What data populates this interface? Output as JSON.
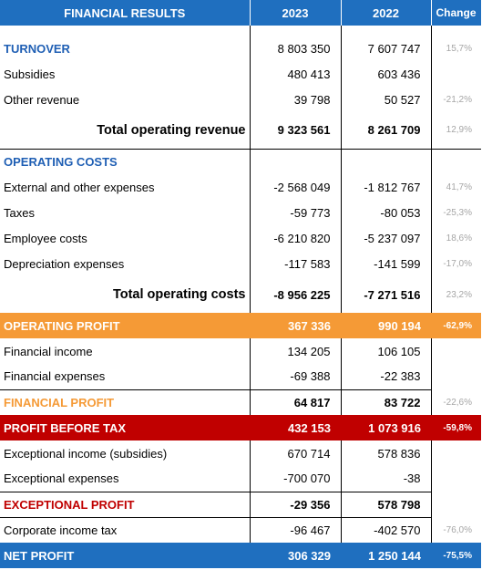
{
  "header": {
    "label": "FINANCIAL RESULTS",
    "y2023": "2023",
    "y2022": "2022",
    "change": "Change"
  },
  "rows": {
    "turnover": {
      "label": "TURNOVER",
      "y2023": "8 803 350",
      "y2022": "7 607 747",
      "change": "15,7%"
    },
    "subsidies": {
      "label": "Subsidies",
      "y2023": "480 413",
      "y2022": "603 436",
      "change": ""
    },
    "other_revenue": {
      "label": "Other revenue",
      "y2023": "39 798",
      "y2022": "50 527",
      "change": "-21,2%"
    },
    "total_operating_revenue": {
      "label": "Total operating revenue",
      "y2023": "9 323 561",
      "y2022": "8 261 709",
      "change": "12,9%"
    },
    "operating_costs": {
      "label": "OPERATING COSTS"
    },
    "external_expenses": {
      "label": "External and other expenses",
      "y2023": "-2 568 049",
      "y2022": "-1 812 767",
      "change": "41,7%"
    },
    "taxes": {
      "label": "Taxes",
      "y2023": "-59 773",
      "y2022": "-80 053",
      "change": "-25,3%"
    },
    "employee_costs": {
      "label": "Employee costs",
      "y2023": "-6 210 820",
      "y2022": "-5 237 097",
      "change": "18,6%"
    },
    "depreciation": {
      "label": "Depreciation expenses",
      "y2023": "-117 583",
      "y2022": "-141 599",
      "change": "-17,0%"
    },
    "total_operating_costs": {
      "label": "Total operating costs",
      "y2023": "-8 956 225",
      "y2022": "-7 271 516",
      "change": "23,2%"
    },
    "operating_profit": {
      "label": "OPERATING PROFIT",
      "y2023": "367 336",
      "y2022": "990 194",
      "change": "-62,9%"
    },
    "financial_income": {
      "label": "Financial income",
      "y2023": "134 205",
      "y2022": "106 105"
    },
    "financial_expenses": {
      "label": "Financial expenses",
      "y2023": "-69 388",
      "y2022": "-22 383"
    },
    "financial_profit": {
      "label": "FINANCIAL PROFIT",
      "y2023": "64 817",
      "y2022": "83 722",
      "change": "-22,6%"
    },
    "profit_before_tax": {
      "label": "PROFIT BEFORE TAX",
      "y2023": "432 153",
      "y2022": "1 073 916",
      "change": "-59,8%"
    },
    "exceptional_income": {
      "label": "Exceptional income (subsidies)",
      "y2023": "670 714",
      "y2022": "578 836"
    },
    "exceptional_expenses": {
      "label": "Exceptional expenses",
      "y2023": "-700 070",
      "y2022": "-38"
    },
    "exceptional_profit": {
      "label": "EXCEPTIONAL PROFIT",
      "y2023": "-29 356",
      "y2022": "578 798"
    },
    "corporate_tax": {
      "label": "Corporate income tax",
      "y2023": "-96 467",
      "y2022": "-402 570",
      "change": "-76,0%"
    },
    "net_profit": {
      "label": "NET PROFIT",
      "y2023": "306 329",
      "y2022": "1 250 144",
      "change": "-75,5%"
    }
  },
  "colors": {
    "header_blue": "#1f6fbf",
    "orange": "#f59a36",
    "red": "#c00000",
    "section_blue": "#1f5fb4",
    "change_gray": "#a6a6a6"
  }
}
